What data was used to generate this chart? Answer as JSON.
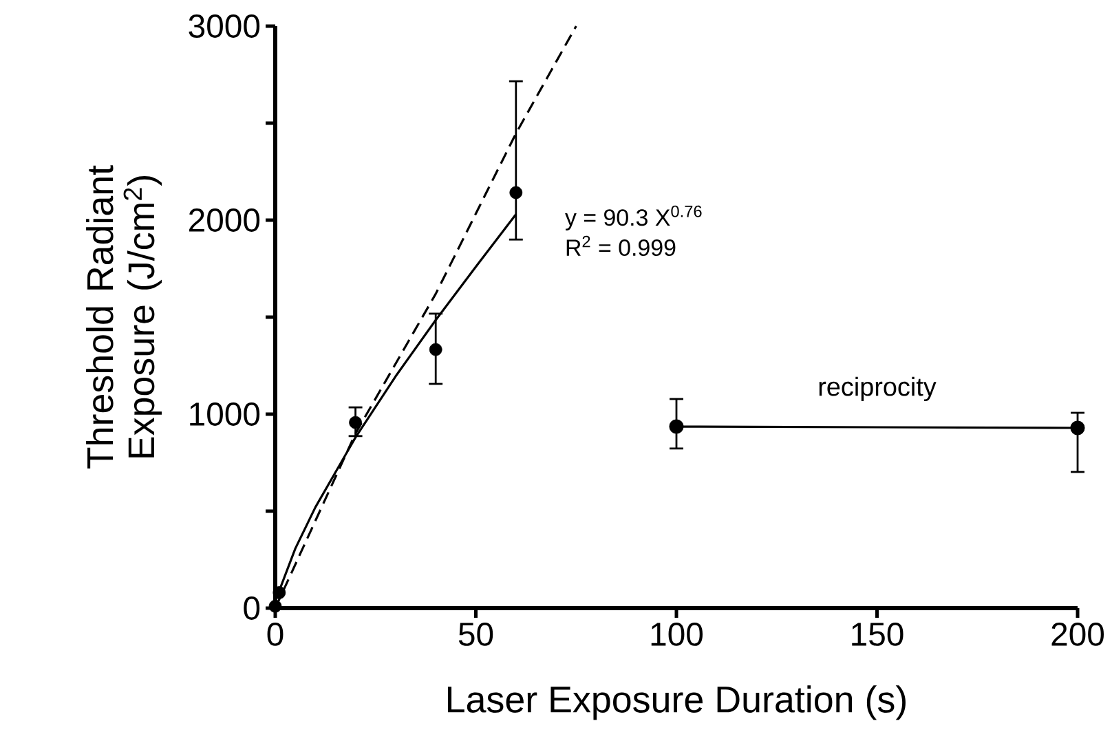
{
  "chart_data": {
    "type": "scatter",
    "xlabel": "Laser Exposure Duration (s)",
    "ylabel": "Threshold Radiant Exposure (J/cm$^{2}$)",
    "xlim": [
      0,
      200
    ],
    "ylim": [
      0,
      3000
    ],
    "xticks": [
      0,
      50,
      100,
      150,
      200
    ],
    "yticks": [
      0,
      {
        "value": 500,
        "label": null
      },
      1000,
      {
        "value": 1500,
        "label": null
      },
      2000,
      {
        "value": 2500,
        "label": null
      },
      3000
    ],
    "series": [
      {
        "color": "#000000",
        "marker": "circle",
        "x": [
          0,
          1,
          20,
          40,
          60
        ],
        "values": [
          10,
          80,
          957,
          1333,
          2142
        ],
        "errors": [
          null,
          null,
          [
            887,
            1035
          ],
          [
            1156,
            1518
          ],
          [
            1900,
            2716
          ]
        ]
      },
      {
        "type": "line",
        "color": "#000000",
        "marker": "circle",
        "line_style": "solid",
        "x": [
          100,
          200
        ],
        "values": [
          936,
          929
        ],
        "errors": [
          [
            823,
            1078
          ],
          [
            702,
            1007
          ]
        ]
      },
      {
        "type": "line",
        "color": "#000000",
        "marker": "none",
        "line_style": "solid",
        "x": [
          1,
          5,
          10,
          20,
          30,
          40,
          50,
          60
        ],
        "values": [
          90,
          307,
          520,
          880,
          1195,
          1485,
          1760,
          2030
        ]
      },
      {
        "type": "line",
        "color": "#000000",
        "marker": "none",
        "line_style": "dashed",
        "x": [
          0,
          20,
          40,
          60,
          75
        ],
        "values": [
          0,
          900,
          1620,
          2447,
          3000
        ]
      }
    ],
    "annotations": [
      "y = 90.3 X$^{0.76}$",
      "R$^{2}$ = 0.999",
      {
        "text": "reciprocity",
        "x": 150,
        "y": 929
      }
    ]
  }
}
